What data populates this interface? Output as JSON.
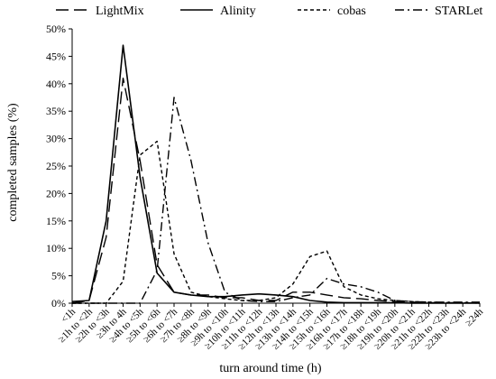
{
  "chart_data": {
    "type": "line",
    "xlabel": "turn around time (h)",
    "ylabel": "completed samples (%)",
    "ylim": [
      0,
      50
    ],
    "y_ticks": [
      "0%",
      "5%",
      "10%",
      "15%",
      "20%",
      "25%",
      "30%",
      "35%",
      "40%",
      "45%",
      "50%"
    ],
    "grid": false,
    "legend_position": "top",
    "categories": [
      "<1h",
      "≥1h to <2h",
      "≥2h to <3h",
      "≥3h to 4h",
      "≥4h to <5h",
      "≥5h to <6h",
      "≥6h to <7h",
      "≥7h to <8h",
      "≥8h to <9h",
      "≥9h to <10h",
      "≥10h to <11h",
      "≥11h to <12h",
      "≥12h to <13h",
      "≥13h to <14h",
      "≥14h to <15h",
      "≥15h to <16h",
      "≥16h to <17h",
      "≥17h to <18h",
      "≥18h to <19h",
      "≥19h to <20h",
      "≥20h to <21h",
      "≥21h to <22h",
      "≥22h to <23h",
      "≥23h to <24h",
      "≥24h"
    ],
    "series": [
      {
        "name": "LightMix",
        "dash": "long-dash",
        "values": [
          0,
          0.5,
          12,
          41,
          26,
          7,
          2,
          1.5,
          1.5,
          1,
          1,
          0.5,
          0.5,
          2,
          2,
          1.5,
          1,
          0.8,
          0.5,
          0.3,
          0.2,
          0.1,
          0.1,
          0.1,
          0
        ]
      },
      {
        "name": "Alinity",
        "dash": "solid",
        "values": [
          0.3,
          0.5,
          15,
          47,
          23,
          5.5,
          2,
          1.5,
          1.2,
          1.2,
          1.5,
          1.7,
          1.5,
          1.2,
          0.5,
          0.2,
          0.1,
          0.1,
          0.1,
          0.1,
          0,
          0,
          0,
          0,
          0
        ]
      },
      {
        "name": "cobas",
        "dash": "short-dash",
        "values": [
          0,
          0,
          0,
          4,
          27,
          29.5,
          9,
          2,
          1.2,
          0.8,
          0.5,
          0.5,
          1,
          3.5,
          8.5,
          9.5,
          3,
          1.5,
          0.8,
          0.5,
          0.3,
          0.2,
          0.1,
          0.1,
          0
        ]
      },
      {
        "name": "STARLet",
        "dash": "dash-dot",
        "values": [
          0,
          0,
          0,
          0,
          0,
          6,
          37.5,
          26,
          11,
          2,
          0.5,
          0.3,
          0.3,
          1,
          1.5,
          4.5,
          3.5,
          3,
          2,
          0.5,
          0.3,
          0.2,
          0.2,
          0.2,
          0.2
        ]
      }
    ]
  }
}
